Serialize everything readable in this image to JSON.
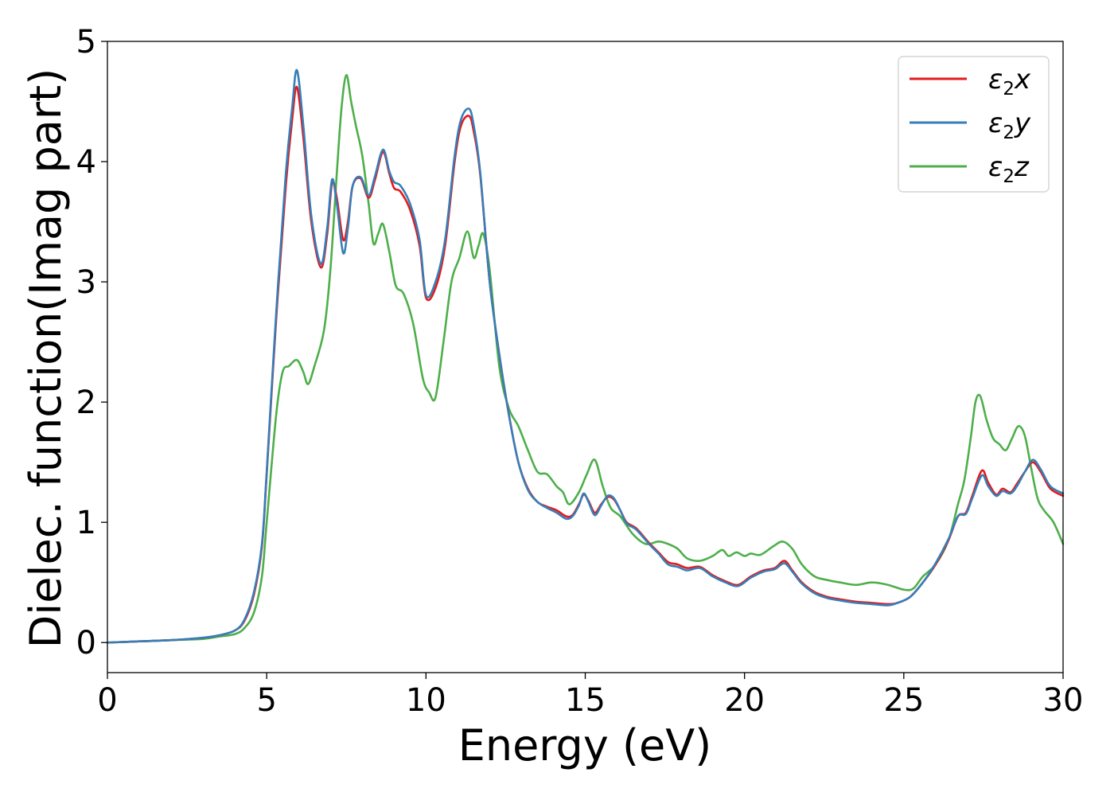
{
  "chart_data": {
    "type": "line",
    "title": "",
    "xlabel": "Energy (eV)",
    "ylabel": "Dielec. function(Imag part)",
    "xlim": [
      0,
      30
    ],
    "ylim": [
      -0.25,
      5
    ],
    "xticks": [
      0,
      5,
      10,
      15,
      20,
      25,
      30
    ],
    "yticks": [
      0,
      1,
      2,
      3,
      4,
      5
    ],
    "grid": false,
    "legend_position": "top-right",
    "series": [
      {
        "name": "ε2x",
        "legend_base": "ε",
        "legend_sub": "2",
        "legend_var": "x",
        "color": "#e41a1c",
        "x": [
          0,
          1,
          2,
          3,
          3.5,
          4,
          4.3,
          4.6,
          4.85,
          5.0,
          5.3,
          5.6,
          5.8,
          5.95,
          6.15,
          6.4,
          6.7,
          6.9,
          7.05,
          7.2,
          7.4,
          7.55,
          7.7,
          7.95,
          8.2,
          8.4,
          8.65,
          8.85,
          9.0,
          9.2,
          9.5,
          9.8,
          10.0,
          10.3,
          10.6,
          10.9,
          11.1,
          11.35,
          11.5,
          11.7,
          12.0,
          12.3,
          12.6,
          12.9,
          13.2,
          13.5,
          13.8,
          14.1,
          14.4,
          14.6,
          14.8,
          14.95,
          15.1,
          15.3,
          15.5,
          15.7,
          15.9,
          16.1,
          16.3,
          16.6,
          17.0,
          17.3,
          17.6,
          17.9,
          18.2,
          18.6,
          19.0,
          19.4,
          19.8,
          20.2,
          20.6,
          20.95,
          21.25,
          21.5,
          21.8,
          22.2,
          22.6,
          23.0,
          23.5,
          24.0,
          24.5,
          24.8,
          25.2,
          25.6,
          26.0,
          26.4,
          26.7,
          26.95,
          27.15,
          27.45,
          27.65,
          27.9,
          28.1,
          28.35,
          28.55,
          28.8,
          29.05,
          29.3,
          29.6,
          30
        ],
        "y": [
          0.0,
          0.01,
          0.02,
          0.04,
          0.06,
          0.1,
          0.18,
          0.4,
          0.8,
          1.4,
          2.7,
          3.8,
          4.35,
          4.62,
          4.2,
          3.5,
          3.12,
          3.4,
          3.82,
          3.7,
          3.35,
          3.5,
          3.8,
          3.86,
          3.7,
          3.85,
          4.08,
          3.9,
          3.78,
          3.75,
          3.6,
          3.3,
          2.87,
          2.95,
          3.3,
          4.0,
          4.3,
          4.38,
          4.25,
          3.9,
          3.0,
          2.4,
          1.9,
          1.5,
          1.28,
          1.17,
          1.13,
          1.1,
          1.05,
          1.06,
          1.15,
          1.23,
          1.18,
          1.08,
          1.15,
          1.21,
          1.19,
          1.1,
          1.0,
          0.95,
          0.83,
          0.75,
          0.67,
          0.65,
          0.62,
          0.63,
          0.56,
          0.51,
          0.48,
          0.55,
          0.6,
          0.62,
          0.68,
          0.6,
          0.5,
          0.42,
          0.38,
          0.36,
          0.34,
          0.33,
          0.32,
          0.33,
          0.38,
          0.5,
          0.65,
          0.85,
          1.05,
          1.08,
          1.22,
          1.43,
          1.33,
          1.23,
          1.28,
          1.25,
          1.32,
          1.42,
          1.5,
          1.42,
          1.28,
          1.22
        ]
      },
      {
        "name": "ε2y",
        "legend_base": "ε",
        "legend_sub": "2",
        "legend_var": "y",
        "color": "#377eb8",
        "x": [
          0,
          1,
          2,
          3,
          3.5,
          4,
          4.3,
          4.6,
          4.85,
          5.0,
          5.3,
          5.6,
          5.8,
          5.95,
          6.15,
          6.4,
          6.7,
          6.9,
          7.05,
          7.2,
          7.4,
          7.55,
          7.7,
          7.95,
          8.2,
          8.4,
          8.65,
          8.85,
          9.0,
          9.2,
          9.5,
          9.8,
          10.0,
          10.3,
          10.6,
          10.9,
          11.1,
          11.35,
          11.5,
          11.7,
          12.0,
          12.3,
          12.6,
          12.9,
          13.2,
          13.5,
          13.8,
          14.1,
          14.4,
          14.6,
          14.8,
          14.95,
          15.1,
          15.3,
          15.5,
          15.7,
          15.9,
          16.1,
          16.3,
          16.6,
          17.0,
          17.3,
          17.6,
          17.9,
          18.2,
          18.6,
          19.0,
          19.4,
          19.8,
          20.2,
          20.6,
          20.95,
          21.25,
          21.5,
          21.8,
          22.2,
          22.6,
          23.0,
          23.5,
          24.0,
          24.5,
          24.8,
          25.2,
          25.6,
          26.0,
          26.4,
          26.7,
          26.95,
          27.15,
          27.45,
          27.65,
          27.9,
          28.1,
          28.35,
          28.55,
          28.8,
          29.05,
          29.3,
          29.6,
          30
        ],
        "y": [
          0.0,
          0.01,
          0.02,
          0.04,
          0.06,
          0.1,
          0.19,
          0.42,
          0.82,
          1.42,
          2.75,
          3.9,
          4.45,
          4.76,
          4.3,
          3.55,
          3.15,
          3.45,
          3.85,
          3.65,
          3.24,
          3.45,
          3.8,
          3.87,
          3.72,
          3.88,
          4.1,
          3.92,
          3.83,
          3.8,
          3.65,
          3.35,
          2.89,
          3.0,
          3.35,
          4.05,
          4.35,
          4.44,
          4.3,
          3.92,
          3.0,
          2.4,
          1.9,
          1.5,
          1.27,
          1.17,
          1.12,
          1.08,
          1.03,
          1.05,
          1.14,
          1.24,
          1.17,
          1.06,
          1.14,
          1.22,
          1.2,
          1.1,
          0.99,
          0.94,
          0.82,
          0.74,
          0.65,
          0.63,
          0.6,
          0.62,
          0.55,
          0.5,
          0.47,
          0.54,
          0.59,
          0.61,
          0.66,
          0.59,
          0.49,
          0.41,
          0.37,
          0.35,
          0.33,
          0.32,
          0.31,
          0.33,
          0.38,
          0.5,
          0.66,
          0.86,
          1.05,
          1.07,
          1.2,
          1.39,
          1.3,
          1.22,
          1.26,
          1.24,
          1.3,
          1.42,
          1.52,
          1.44,
          1.3,
          1.24
        ]
      },
      {
        "name": "ε2z",
        "legend_base": "ε",
        "legend_sub": "2",
        "legend_var": "z",
        "color": "#4daf4a",
        "x": [
          0,
          1,
          2,
          3,
          3.5,
          4,
          4.3,
          4.6,
          4.85,
          5.0,
          5.3,
          5.5,
          5.7,
          5.95,
          6.15,
          6.3,
          6.5,
          6.8,
          7.0,
          7.2,
          7.35,
          7.5,
          7.65,
          7.8,
          8.0,
          8.2,
          8.35,
          8.5,
          8.65,
          8.85,
          9.05,
          9.3,
          9.6,
          9.9,
          10.1,
          10.3,
          10.55,
          10.8,
          11.05,
          11.3,
          11.5,
          11.65,
          11.8,
          12.0,
          12.3,
          12.6,
          12.9,
          13.2,
          13.5,
          13.8,
          14.1,
          14.3,
          14.5,
          14.8,
          15.05,
          15.3,
          15.55,
          15.8,
          16.1,
          16.5,
          16.9,
          17.3,
          17.6,
          17.9,
          18.2,
          18.6,
          19.0,
          19.3,
          19.5,
          19.75,
          20.0,
          20.2,
          20.5,
          20.9,
          21.2,
          21.5,
          21.8,
          22.2,
          22.6,
          23.0,
          23.5,
          24.0,
          24.5,
          25.0,
          25.3,
          25.6,
          26.0,
          26.4,
          26.7,
          26.9,
          27.1,
          27.25,
          27.4,
          27.6,
          27.8,
          28.0,
          28.2,
          28.4,
          28.6,
          28.8,
          29.0,
          29.2,
          29.4,
          29.7,
          30
        ],
        "y": [
          0.0,
          0.01,
          0.02,
          0.03,
          0.05,
          0.07,
          0.12,
          0.25,
          0.55,
          1.0,
          1.9,
          2.25,
          2.3,
          2.35,
          2.25,
          2.15,
          2.3,
          2.6,
          3.1,
          3.9,
          4.45,
          4.72,
          4.5,
          4.3,
          4.05,
          3.65,
          3.32,
          3.4,
          3.48,
          3.25,
          2.97,
          2.9,
          2.65,
          2.2,
          2.08,
          2.04,
          2.5,
          3.0,
          3.2,
          3.42,
          3.2,
          3.3,
          3.4,
          3.1,
          2.3,
          1.95,
          1.8,
          1.6,
          1.42,
          1.4,
          1.3,
          1.25,
          1.15,
          1.25,
          1.4,
          1.52,
          1.3,
          1.12,
          1.05,
          0.9,
          0.82,
          0.84,
          0.82,
          0.78,
          0.7,
          0.68,
          0.72,
          0.77,
          0.72,
          0.75,
          0.72,
          0.74,
          0.73,
          0.8,
          0.84,
          0.78,
          0.65,
          0.55,
          0.52,
          0.5,
          0.48,
          0.5,
          0.48,
          0.44,
          0.45,
          0.55,
          0.65,
          0.85,
          1.15,
          1.35,
          1.7,
          2.0,
          2.05,
          1.85,
          1.7,
          1.65,
          1.6,
          1.7,
          1.8,
          1.72,
          1.45,
          1.2,
          1.1,
          1.0,
          0.82
        ]
      }
    ]
  }
}
